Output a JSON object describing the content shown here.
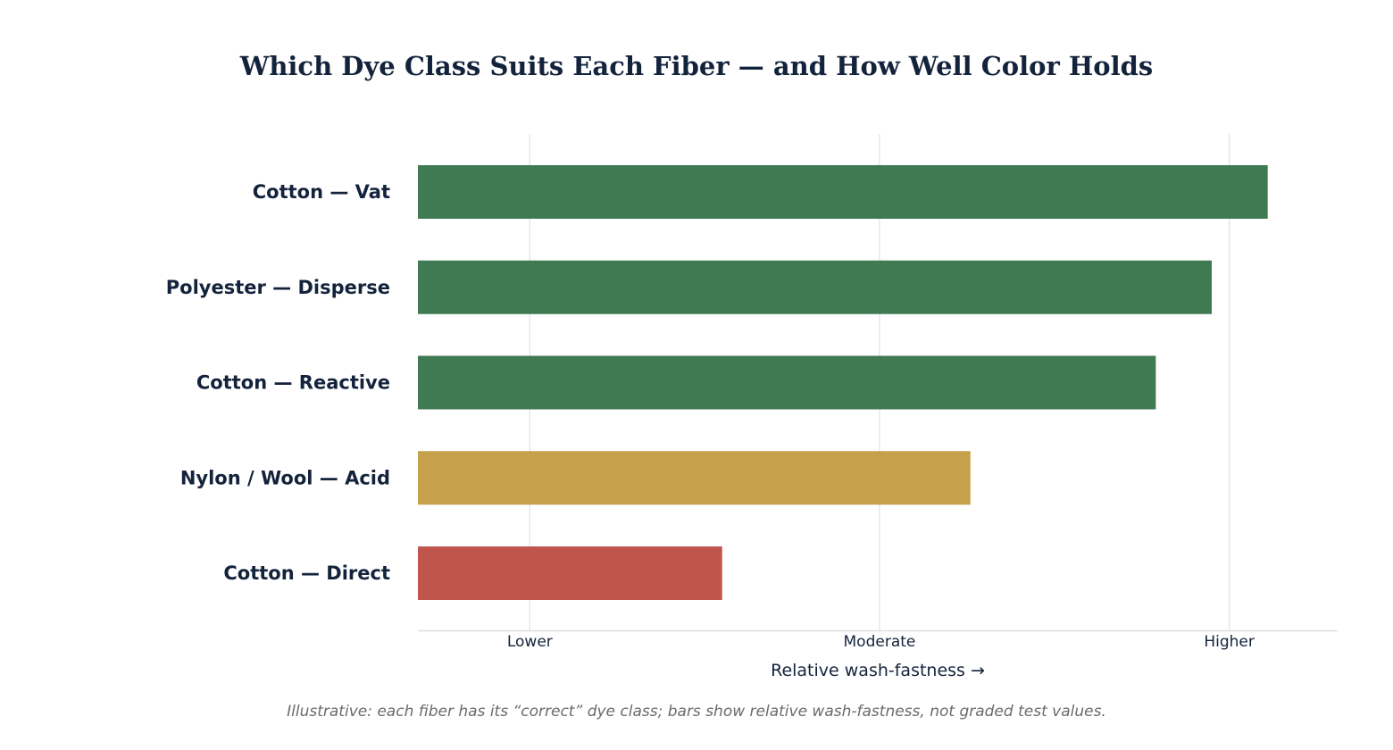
{
  "chart_data": {
    "type": "bar",
    "orientation": "horizontal",
    "title": "Which Dye Class Suits Each Fiber — and How Well Color Holds",
    "xlabel": "Relative wash-fastness  →",
    "ylabel": "",
    "categories": [
      "Cotton — Vat",
      "Polyester — Disperse",
      "Cotton — Reactive",
      "Nylon / Wool — Acid",
      "Cotton — Direct"
    ],
    "values": [
      4.95,
      4.79,
      4.63,
      4.1,
      3.39
    ],
    "bar_colors": [
      "#407a52",
      "#407a52",
      "#407a52",
      "#c7a04b",
      "#c0554e"
    ],
    "xlim": [
      2.52,
      5.15
    ],
    "xticks": [
      {
        "value": 2.84,
        "label": "Lower"
      },
      {
        "value": 3.84,
        "label": "Moderate"
      },
      {
        "value": 4.84,
        "label": "Higher"
      }
    ],
    "grid": true,
    "caption": "Illustrative: each fiber has its “correct” dye class; bars show relative wash-fastness, not graded test values."
  }
}
